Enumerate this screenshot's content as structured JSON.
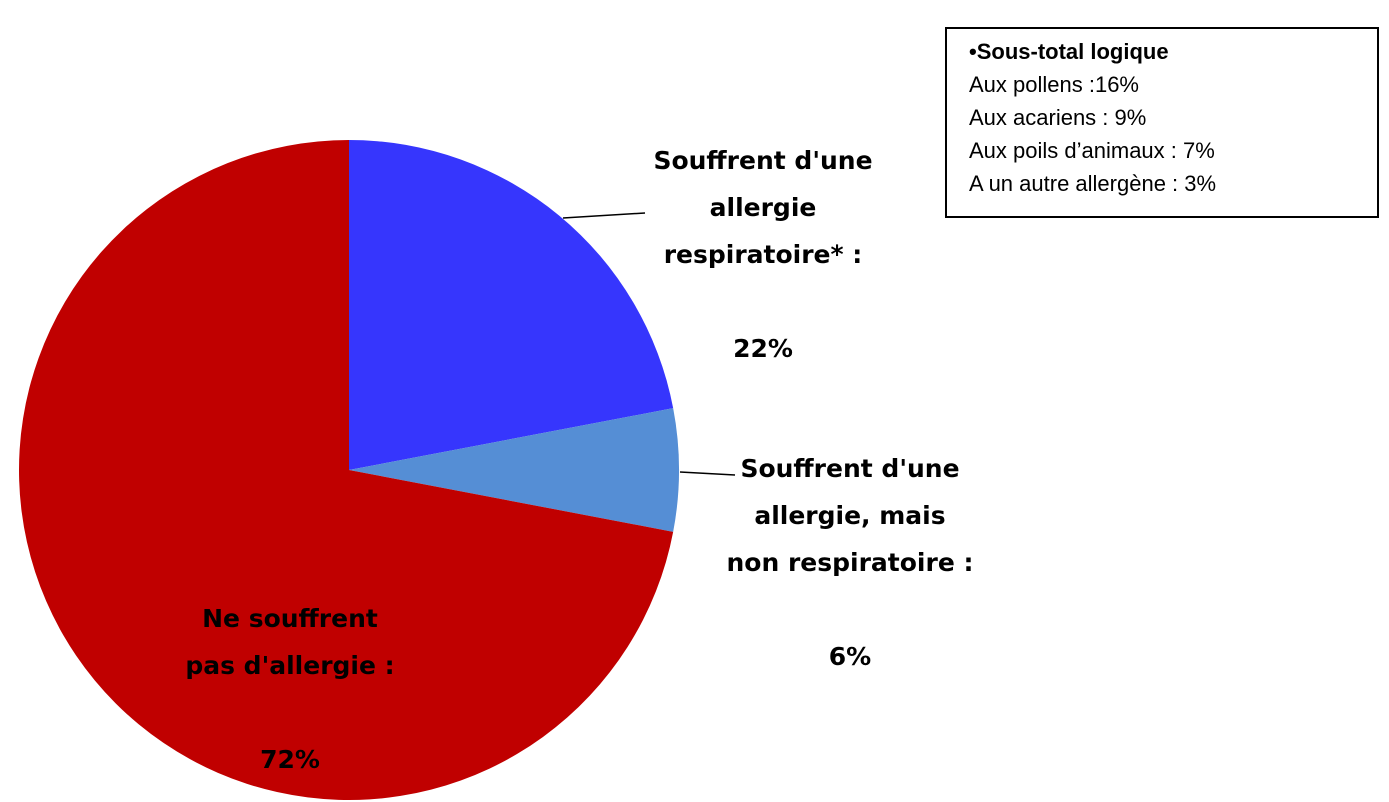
{
  "chart_data": {
    "type": "pie",
    "categories": [
      "Souffrent d'une\nallergie\nrespiratoire* :",
      "Souffrent d'une\nallergie, mais\nnon respiratoire :",
      "Ne souffrent\npas d'allergie :"
    ],
    "values": [
      22,
      6,
      72
    ],
    "value_labels": [
      "22%",
      "6%",
      "72%"
    ],
    "colors": [
      "#3636fd",
      "#558ed5",
      "#c00000"
    ],
    "annotation": {
      "title": "•Sous-total logique",
      "lines": [
        "Aux pollens :16%",
        "Aux acariens : 9%",
        "Aux poils d’animaux : 7%",
        "A un autre allergène : 3%"
      ]
    }
  }
}
